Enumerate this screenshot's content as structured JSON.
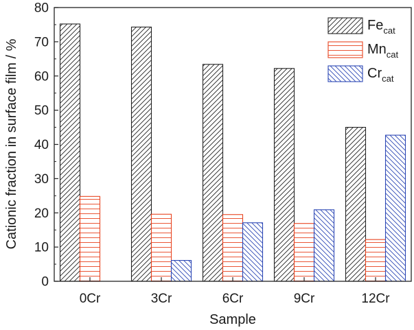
{
  "chart_data": {
    "type": "bar",
    "categories": [
      "0Cr",
      "3Cr",
      "6Cr",
      "9Cr",
      "12Cr"
    ],
    "series": [
      {
        "name": "Fe",
        "subscript": "cat",
        "values": [
          75.2,
          74.3,
          63.4,
          62.2,
          45.0
        ],
        "stroke": "#222222",
        "pattern": "diagonal-up"
      },
      {
        "name": "Mn",
        "subscript": "cat",
        "values": [
          24.8,
          19.6,
          19.5,
          16.9,
          12.2
        ],
        "stroke": "#e8431f",
        "pattern": "horizontal"
      },
      {
        "name": "Cr",
        "subscript": "cat",
        "values": [
          0,
          6.1,
          17.1,
          20.9,
          42.7
        ],
        "stroke": "#2c47b5",
        "pattern": "diagonal-down"
      }
    ],
    "xlabel": "Sample",
    "ylabel": "Cationic fraction in surface film / %",
    "ylim": [
      0,
      80
    ],
    "yticks": [
      0,
      10,
      20,
      30,
      40,
      50,
      60,
      70,
      80
    ],
    "grid": false,
    "legend_position": "top-right"
  }
}
